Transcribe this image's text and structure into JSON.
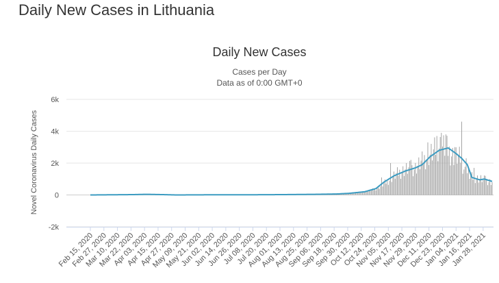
{
  "page": {
    "heading": "Daily New Cases in Lithuania"
  },
  "colors": {
    "bars": "#9a9a9a",
    "moving_average": "#3b9bc1",
    "grid": "#e6e6e6"
  },
  "chart_data": {
    "type": "bar",
    "title": "Daily New Cases",
    "subtitle_lines": [
      "Cases per Day",
      "Data as of 0:00 GMT+0"
    ],
    "xlabel": "",
    "ylabel": "Novel Coronavirus Daily Cases",
    "x_start_date": "2020-02-15",
    "x_end_date": "2021-02-05",
    "ylim": [
      -2000,
      6000
    ],
    "y_ticks": [
      {
        "value": -2000,
        "label": "-2k"
      },
      {
        "value": 0,
        "label": "0"
      },
      {
        "value": 2000,
        "label": "2k"
      },
      {
        "value": 4000,
        "label": "4k"
      },
      {
        "value": 6000,
        "label": "6k"
      }
    ],
    "x_tick_labels": [
      "Feb 15, 2020",
      "Feb 27, 2020",
      "Mar 10, 2020",
      "Mar 22, 2020",
      "Apr 03, 2020",
      "Apr 15, 2020",
      "Apr 27, 2020",
      "May 09, 2020",
      "May 21, 2020",
      "Jun 02, 2020",
      "Jun 14, 2020",
      "Jun 26, 2020",
      "Jul 08, 2020",
      "Jul 20, 2020",
      "Aug 01, 2020",
      "Aug 13, 2020",
      "Aug 25, 2020",
      "Sep 06, 2020",
      "Sep 18, 2020",
      "Sep 30, 2020",
      "Oct 12, 2020",
      "Oct 24, 2020",
      "Nov 05, 2020",
      "Nov 17, 2020",
      "Nov 29, 2020",
      "Dec 11, 2020",
      "Dec 23, 2020",
      "Jan 04, 2021",
      "Jan 16, 2021",
      "Jan 28, 2021"
    ],
    "grid": true,
    "legend": "none",
    "series": [
      {
        "kind": "bar",
        "daily_key_points": [
          [
            "2020-02-15",
            0
          ],
          [
            "2020-03-15",
            10
          ],
          [
            "2020-03-28",
            60
          ],
          [
            "2020-04-10",
            50
          ],
          [
            "2020-04-25",
            30
          ],
          [
            "2020-05-15",
            10
          ],
          [
            "2020-06-15",
            8
          ],
          [
            "2020-07-15",
            10
          ],
          [
            "2020-08-01",
            20
          ],
          [
            "2020-08-20",
            30
          ],
          [
            "2020-09-05",
            40
          ],
          [
            "2020-09-20",
            60
          ],
          [
            "2020-10-01",
            100
          ],
          [
            "2020-10-12",
            150
          ],
          [
            "2020-10-20",
            250
          ],
          [
            "2020-10-28",
            500
          ],
          [
            "2020-11-05",
            900
          ],
          [
            "2020-11-12",
            1300
          ],
          [
            "2020-11-20",
            1600
          ],
          [
            "2020-11-29",
            1700
          ],
          [
            "2020-12-08",
            2300
          ],
          [
            "2020-12-15",
            2700
          ],
          [
            "2020-12-20",
            3100
          ],
          [
            "2020-12-25",
            3000
          ],
          [
            "2021-01-01",
            2500
          ],
          [
            "2021-01-08",
            2300
          ],
          [
            "2021-01-12",
            1500
          ],
          [
            "2021-01-18",
            1100
          ],
          [
            "2021-01-26",
            1000
          ],
          [
            "2021-02-05",
            800
          ]
        ],
        "spikes": [
          [
            "2020-10-30",
            1100
          ],
          [
            "2020-11-07",
            2000
          ],
          [
            "2020-11-25",
            2200
          ],
          [
            "2020-12-10",
            3300
          ],
          [
            "2020-12-18",
            3700
          ],
          [
            "2020-12-22",
            3900
          ],
          [
            "2020-12-26",
            3800
          ],
          [
            "2021-01-03",
            3000
          ],
          [
            "2021-01-09",
            4600
          ],
          [
            "2021-01-13",
            2300
          ],
          [
            "2021-01-20",
            1700
          ],
          [
            "2021-01-30",
            1200
          ]
        ]
      },
      {
        "kind": "line",
        "key_points": [
          [
            "2020-02-15",
            0
          ],
          [
            "2020-03-22",
            20
          ],
          [
            "2020-04-05",
            40
          ],
          [
            "2020-04-20",
            20
          ],
          [
            "2020-05-01",
            0
          ],
          [
            "2020-06-01",
            10
          ],
          [
            "2020-07-01",
            10
          ],
          [
            "2020-08-01",
            20
          ],
          [
            "2020-09-01",
            40
          ],
          [
            "2020-09-20",
            60
          ],
          [
            "2020-10-01",
            100
          ],
          [
            "2020-10-15",
            200
          ],
          [
            "2020-10-25",
            400
          ],
          [
            "2020-11-01",
            800
          ],
          [
            "2020-11-10",
            1200
          ],
          [
            "2020-11-20",
            1500
          ],
          [
            "2020-11-29",
            1700
          ],
          [
            "2020-12-05",
            1900
          ],
          [
            "2020-12-12",
            2400
          ],
          [
            "2020-12-20",
            2800
          ],
          [
            "2020-12-28",
            2950
          ],
          [
            "2021-01-04",
            2600
          ],
          [
            "2021-01-09",
            2300
          ],
          [
            "2021-01-14",
            1900
          ],
          [
            "2021-01-18",
            1100
          ],
          [
            "2021-01-25",
            950
          ],
          [
            "2021-01-29",
            1000
          ],
          [
            "2021-02-05",
            850
          ]
        ]
      }
    ]
  }
}
